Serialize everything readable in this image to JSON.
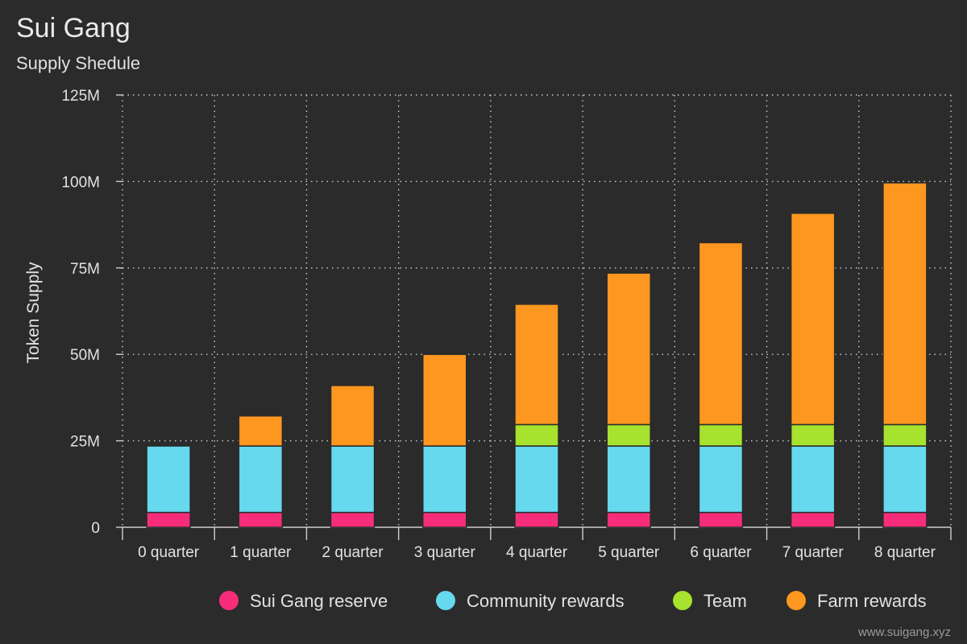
{
  "chart_data": {
    "type": "bar",
    "stacked": true,
    "title": "Sui Gang",
    "subtitle": "Supply Shedule",
    "xlabel": "",
    "ylabel": "Token Supply",
    "ylim": [
      0,
      125000000
    ],
    "yticks": [
      0,
      25000000,
      50000000,
      75000000,
      100000000,
      125000000
    ],
    "ytick_labels": [
      "0",
      "25M",
      "50M",
      "75M",
      "100M",
      "125M"
    ],
    "grid": true,
    "legend_position": "bottom-right",
    "categories": [
      "0 quarter",
      "1 quarter",
      "2 quarter",
      "3 quarter",
      "4 quarter",
      "5 quarter",
      "6 quarter",
      "7 quarter",
      "8 quarter"
    ],
    "series": [
      {
        "name": "Sui Gang reserve",
        "color": "#f72d7b",
        "values": [
          4300000,
          4300000,
          4300000,
          4300000,
          4300000,
          4300000,
          4300000,
          4300000,
          4300000
        ]
      },
      {
        "name": "Community rewards",
        "color": "#66d9ef",
        "values": [
          19200000,
          19200000,
          19200000,
          19200000,
          19200000,
          19200000,
          19200000,
          19200000,
          19200000
        ]
      },
      {
        "name": "Team",
        "color": "#a6e22e",
        "values": [
          0,
          0,
          0,
          0,
          6200000,
          6200000,
          6200000,
          6200000,
          6200000
        ]
      },
      {
        "name": "Farm rewards",
        "color": "#fd971f",
        "values": [
          0,
          8700000,
          17500000,
          26500000,
          34800000,
          43800000,
          52600000,
          61100000,
          69900000
        ]
      }
    ]
  },
  "footer": {
    "credit": "www.suigang.xyz"
  }
}
